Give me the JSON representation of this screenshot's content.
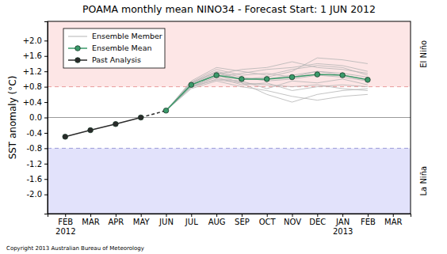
{
  "chart_data": {
    "type": "line",
    "title": "POAMA monthly mean NINO34 - Forecast Start: 1 JUN 2012",
    "y_label": "SST anomaly (°C)",
    "note": "Copyright 2013 Australian Bureau of Meteorology",
    "categories": [
      "FEB\n2012",
      "MAR",
      "APR",
      "MAY",
      "JUN",
      "JUL",
      "AUG",
      "SEP",
      "OCT",
      "NOV",
      "DEC",
      "JAN\n2013",
      "FEB",
      "MAR"
    ],
    "ylim": [
      -2.5,
      2.5
    ],
    "yticks": [
      {
        "value": 2.0,
        "label": "+2.0"
      },
      {
        "value": 1.6,
        "label": "+1.6"
      },
      {
        "value": 1.2,
        "label": "+1.2"
      },
      {
        "value": 0.8,
        "label": "+0.8"
      },
      {
        "value": 0.4,
        "label": "+0.4"
      },
      {
        "value": 0.0,
        "label": "0.0"
      },
      -0.4,
      -0.8,
      -1.2,
      -1.6,
      {
        "value": -2.0,
        "label": "-2.0"
      }
    ],
    "legend": "upper left",
    "regions": [
      {
        "label": "El Niño",
        "from": 0.8,
        "to": 2.5,
        "color": "#fde6e6"
      },
      {
        "label": "La Niña",
        "from": -2.5,
        "to": -0.8,
        "color": "#e2e2fb"
      }
    ],
    "reference_lines": [
      {
        "value": 0.8,
        "color": "#e89a9a",
        "line_style": "dashed"
      },
      {
        "value": -0.8,
        "color": "#9a9ad8",
        "line_style": "dashed"
      },
      {
        "value": 0,
        "color": "#9a9a9a",
        "line_style": "solid"
      }
    ],
    "series": [
      {
        "name": "Ensemble Member",
        "color": "#b4b4b4",
        "marker": "none",
        "members": [
          [
            null,
            null,
            null,
            null,
            0.18,
            0.8,
            1.05,
            1.15,
            1.25,
            1.3,
            1.4,
            1.35,
            1.2,
            null
          ],
          [
            null,
            null,
            null,
            null,
            0.18,
            0.9,
            1.2,
            1.05,
            0.95,
            1.0,
            1.1,
            1.05,
            0.95,
            null
          ],
          [
            null,
            null,
            null,
            null,
            0.18,
            0.75,
            0.95,
            0.8,
            0.7,
            0.55,
            0.45,
            0.55,
            0.6,
            null
          ],
          [
            null,
            null,
            null,
            null,
            0.18,
            0.95,
            1.3,
            1.2,
            1.1,
            1.25,
            1.35,
            1.3,
            1.1,
            null
          ],
          [
            null,
            null,
            null,
            null,
            0.18,
            0.85,
            1.1,
            0.9,
            0.85,
            0.8,
            0.85,
            0.75,
            0.7,
            null
          ],
          [
            null,
            null,
            null,
            null,
            0.18,
            0.88,
            1.15,
            1.0,
            1.05,
            1.2,
            1.55,
            1.5,
            1.4,
            null
          ],
          [
            null,
            null,
            null,
            null,
            0.18,
            0.78,
            1.0,
            0.95,
            0.75,
            0.95,
            0.9,
            1.0,
            0.85,
            null
          ],
          [
            null,
            null,
            null,
            null,
            0.18,
            0.92,
            1.25,
            1.1,
            1.15,
            1.05,
            1.2,
            1.15,
            1.05,
            null
          ],
          [
            null,
            null,
            null,
            null,
            0.18,
            0.82,
            1.05,
            0.85,
            0.9,
            0.7,
            0.8,
            0.85,
            0.8,
            null
          ],
          [
            null,
            null,
            null,
            null,
            0.18,
            0.86,
            1.12,
            1.25,
            1.3,
            1.45,
            1.3,
            1.25,
            1.15,
            null
          ],
          [
            null,
            null,
            null,
            null,
            0.18,
            0.8,
            0.98,
            0.9,
            0.6,
            0.4,
            0.6,
            0.7,
            0.75,
            null
          ],
          [
            null,
            null,
            null,
            null,
            0.18,
            0.9,
            1.18,
            1.0,
            1.0,
            1.1,
            1.2,
            1.1,
            1.0,
            null
          ]
        ]
      },
      {
        "name": "Ensemble Mean",
        "color": "#3a9a6a",
        "marker": "circle",
        "values": [
          null,
          null,
          null,
          null,
          0.18,
          0.85,
          1.1,
          1.0,
          1.0,
          1.05,
          1.12,
          1.1,
          0.98,
          null
        ]
      },
      {
        "name": "Past Analysis",
        "color": "#2a2a2a",
        "marker": "circle",
        "values": [
          -0.5,
          -0.33,
          -0.17,
          0.0,
          null,
          null,
          null,
          null,
          null,
          null,
          null,
          null,
          null,
          null
        ]
      }
    ]
  }
}
